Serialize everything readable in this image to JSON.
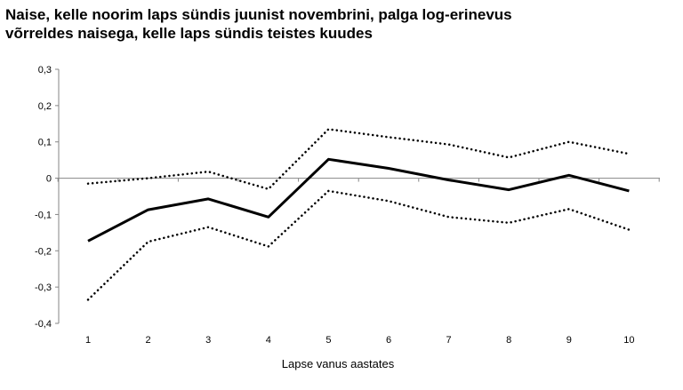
{
  "chart_data": {
    "type": "line",
    "title": "Naise, kelle  noorim laps sündis juunist novembrini, palga log-erinevus võrreldes naisega, kelle laps sündis teistes kuudes",
    "title_lines": [
      "Naise, kelle  noorim laps sündis juunist novembrini, palga log-erinevus",
      "võrreldes naisega, kelle laps sündis teistes kuudes"
    ],
    "xlabel": "Lapse vanus aastates",
    "ylabel": "",
    "x": [
      1,
      2,
      3,
      4,
      5,
      6,
      7,
      8,
      9,
      10
    ],
    "x_tick_labels": [
      "1",
      "2",
      "3",
      "4",
      "5",
      "6",
      "7",
      "8",
      "9",
      "10"
    ],
    "ylim": [
      -0.4,
      0.3
    ],
    "y_ticks": [
      0.3,
      0.2,
      0.1,
      0,
      -0.1,
      -0.2,
      -0.3,
      -0.4
    ],
    "y_tick_labels": [
      "0,3",
      "0,2",
      "0,1",
      "0",
      "-0,1",
      "-0,2",
      "-0,3",
      "-0,4"
    ],
    "grid": false,
    "legend": "none",
    "series": [
      {
        "style": "solid",
        "color": "#000000",
        "values": [
          -0.173,
          -0.087,
          -0.057,
          -0.107,
          0.052,
          0.027,
          -0.005,
          -0.032,
          0.008,
          -0.035
        ]
      },
      {
        "style": "dotted",
        "color": "#000000",
        "values": [
          -0.015,
          0.0,
          0.018,
          -0.03,
          0.135,
          0.113,
          0.093,
          0.057,
          0.1,
          0.067
        ]
      },
      {
        "style": "dotted",
        "color": "#000000",
        "values": [
          -0.335,
          -0.175,
          -0.135,
          -0.188,
          -0.035,
          -0.063,
          -0.107,
          -0.123,
          -0.085,
          -0.142
        ]
      }
    ]
  }
}
